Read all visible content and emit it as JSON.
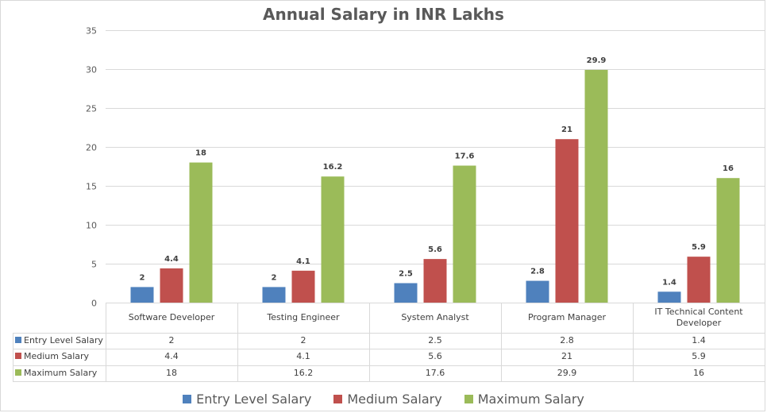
{
  "chart_data": {
    "type": "bar",
    "title": "Annual Salary in INR Lakhs",
    "xlabel": "",
    "ylabel": "",
    "ylim": [
      0,
      35
    ],
    "yticks": [
      0,
      5,
      10,
      15,
      20,
      25,
      30,
      35
    ],
    "grid": true,
    "legend": "bottom",
    "data_table": true,
    "categories": [
      "Software Developer",
      "Testing Engineer",
      "System Analyst",
      "Program Manager",
      "IT Technical Content Developer"
    ],
    "series": [
      {
        "name": "Entry Level Salary",
        "color": "#4F81BD",
        "values": [
          2,
          2,
          2.5,
          2.8,
          1.4
        ]
      },
      {
        "name": "Medium Salary",
        "color": "#C0504D",
        "values": [
          4.4,
          4.1,
          5.6,
          21,
          5.9
        ]
      },
      {
        "name": "Maximum Salary",
        "color": "#9BBB59",
        "values": [
          18,
          16.2,
          17.6,
          29.9,
          16
        ]
      }
    ]
  }
}
